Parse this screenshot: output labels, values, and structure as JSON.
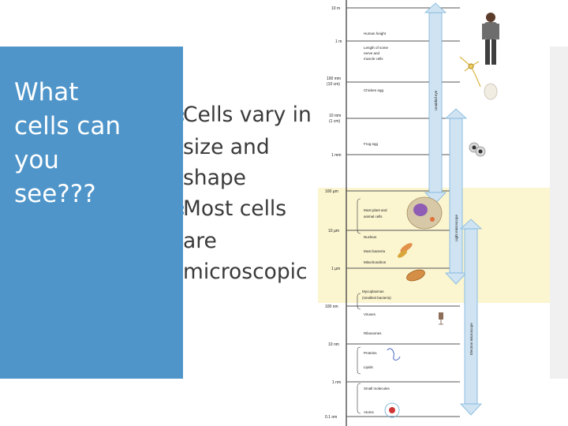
{
  "slide": {
    "title_lines": [
      "What",
      "cells can",
      "you",
      "see???"
    ],
    "bullets": [
      {
        "lines": [
          "Cells vary in",
          "size and",
          "shape"
        ]
      },
      {
        "lines": [
          "Most cells",
          "are",
          "microscopic"
        ]
      }
    ],
    "bullet_icon": "cursive-swash-bullet-icon",
    "accent_color": "#4f95c9"
  },
  "scale_chart": {
    "ticks": [
      {
        "label": "10 m"
      },
      {
        "label": "1 m"
      },
      {
        "label": "100 mm",
        "sub": "(10 cm)"
      },
      {
        "label": "10 mm",
        "sub": "(1 cm)"
      },
      {
        "label": "1 mm"
      },
      {
        "label": "100 µm"
      },
      {
        "label": "10 µm"
      },
      {
        "label": "1 µm"
      },
      {
        "label": "100 nm"
      },
      {
        "label": "10 nm"
      },
      {
        "label": "1 nm"
      },
      {
        "label": "0.1 nm"
      }
    ],
    "items": [
      {
        "label": "Human height"
      },
      {
        "label": "Length of some",
        "label2": "nerve and",
        "label3": "muscle cells"
      },
      {
        "label": "Chicken egg"
      },
      {
        "label": "Frog egg"
      },
      {
        "label": "Most plant and",
        "label2": "animal cells"
      },
      {
        "label": "Nucleus"
      },
      {
        "label": "Most bacteria"
      },
      {
        "label": "Mitochondrion"
      },
      {
        "label": "Mycoplasmas",
        "label2": "(smallest bacteria)"
      },
      {
        "label": "Viruses"
      },
      {
        "label": "Ribosomes"
      },
      {
        "label": "Proteins"
      },
      {
        "label": "Lipids"
      },
      {
        "label": "Small molecules"
      },
      {
        "label": "Atoms"
      }
    ],
    "ranges": [
      {
        "label": "Unaided eye"
      },
      {
        "label": "Light microscope"
      },
      {
        "label": "Electron microscope"
      }
    ],
    "colors": {
      "band": "#fbf5d0",
      "arrow_fill": "#cfe3f2",
      "arrow_stroke": "#7ab4dc"
    }
  }
}
